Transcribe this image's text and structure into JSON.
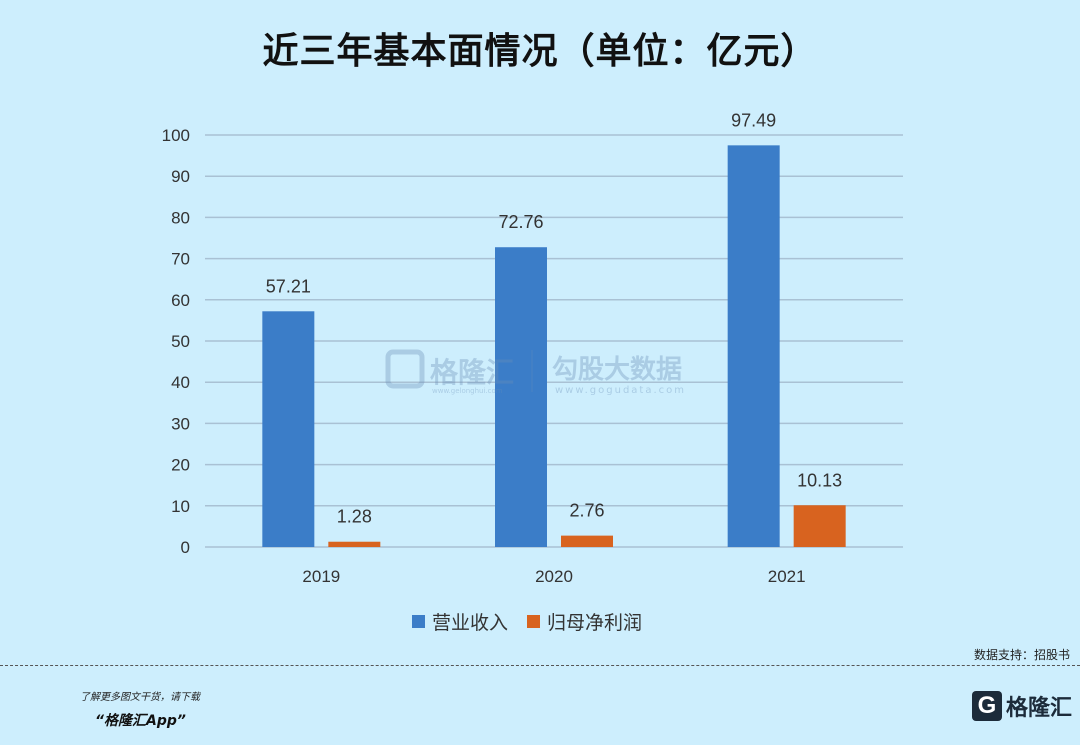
{
  "title": "近三年基本面情况（单位：亿元）",
  "chart_data": {
    "type": "bar",
    "categories": [
      "2019",
      "2020",
      "2021"
    ],
    "series": [
      {
        "name": "营业收入",
        "values": [
          57.21,
          72.76,
          97.49
        ],
        "color": "#3b7dc8",
        "labels": [
          "57.21",
          "72.76",
          "97.49"
        ]
      },
      {
        "name": "归母净利润",
        "values": [
          1.28,
          2.76,
          10.13
        ],
        "color": "#d8631f",
        "labels": [
          "1.28",
          "2.76",
          "10.13"
        ]
      }
    ],
    "ylim": [
      0,
      100
    ],
    "yticks": [
      0,
      10,
      20,
      30,
      40,
      50,
      60,
      70,
      80,
      90,
      100
    ],
    "grid": true,
    "legend": "bottom"
  },
  "watermark": {
    "brand": "格隆汇",
    "brand_url": "www.gelonghui.com",
    "product": "勾股大数据",
    "product_url": "www.gogudata.com"
  },
  "source": "数据支持：招股书",
  "promo": {
    "line1": "了解更多图文干货，请下载",
    "line2": "“格隆汇App”"
  },
  "brand": {
    "icon": "G",
    "name": "格隆汇"
  }
}
